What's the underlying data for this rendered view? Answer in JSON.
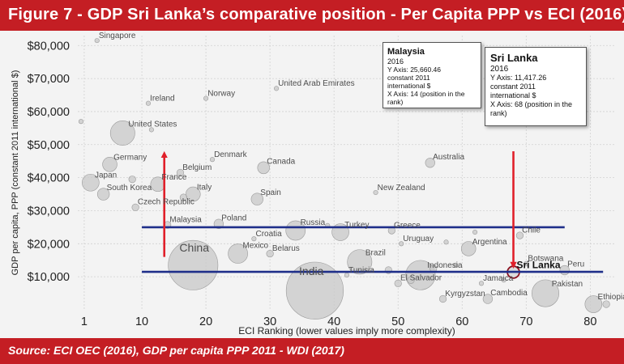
{
  "header": {
    "title": "Figure 7 - GDP Sri Lanka’s comparative position - Per Capita PPP vs ECI (2016)"
  },
  "footer": {
    "source": "Source: ECI OEC (2016), GDP per capita PPP 2011 - WDI (2017)"
  },
  "callouts": {
    "malaysia": {
      "title": "Malaysia",
      "year": "2016",
      "lines": [
        "Y Axis: 25,660.46",
        "constant 2011",
        "international $",
        "X Axis: 14 (position in the",
        "rank)"
      ]
    },
    "sri_lanka": {
      "title": "Sri Lanka",
      "year": "2016",
      "lines": [
        "Y Axis: 11,417.26",
        "constant 2011",
        "international $",
        "X Axis: 68 (position in the",
        "rank)"
      ]
    }
  },
  "colors": {
    "brand_red": "#c41e24",
    "reference_line_blue": "#1f2f8a",
    "arrow_red": "#e0202a",
    "bubble_fill": "#c8c8c8",
    "bubble_stroke": "#9a9a9a",
    "plot_background": "#f3f3f3"
  },
  "chart_data": {
    "type": "scatter",
    "title": "Figure 7 - GDP Sri Lanka’s comparative position - Per Capita PPP vs ECI (2016)",
    "xlabel": "ECI Ranking (lower values imply more complexity)",
    "ylabel": "GDP per capita, PPP (constant 2011 international $)",
    "xlim": [
      0,
      84
    ],
    "ylim": [
      0,
      83000
    ],
    "xticks": [
      1,
      10,
      20,
      30,
      40,
      50,
      60,
      70,
      80
    ],
    "yticks": [
      10000,
      20000,
      30000,
      40000,
      50000,
      60000,
      70000,
      80000
    ],
    "ytick_labels": [
      "$10,000",
      "$20,000",
      "$30,000",
      "$40,000",
      "$50,000",
      "$60,000",
      "$70,000",
      "$80,000"
    ],
    "grid": true,
    "reference_lines": [
      {
        "y": 25000,
        "x_from": 10,
        "x_to": 76
      },
      {
        "y": 11500,
        "x_from": 10,
        "x_to": 82
      }
    ],
    "arrows": [
      {
        "x": 13.5,
        "y_from": 16000,
        "y_to": 47000,
        "direction": "up"
      },
      {
        "x": 68,
        "y_from": 48000,
        "y_to": 13500,
        "direction": "down"
      }
    ],
    "highlight": "Sri Lanka",
    "points": [
      {
        "label": "Singapore",
        "x": 3,
        "y": 81500,
        "size": 1
      },
      {
        "label": "Ireland",
        "x": 11,
        "y": 62500,
        "size": 1
      },
      {
        "label": "Norway",
        "x": 20,
        "y": 64000,
        "size": 1
      },
      {
        "label": "United Arab Emirates",
        "x": 31,
        "y": 67000,
        "size": 1
      },
      {
        "label": "United States",
        "x": 7,
        "y": 53500,
        "size": 9
      },
      {
        "label": "Germany",
        "x": 5,
        "y": 44000,
        "size": 5
      },
      {
        "label": "Japan",
        "x": 2,
        "y": 38500,
        "size": 6
      },
      {
        "label": "South Korea",
        "x": 4,
        "y": 35000,
        "size": 4
      },
      {
        "label": "France",
        "x": 12.5,
        "y": 38000,
        "size": 5
      },
      {
        "label": "Belgium",
        "x": 16,
        "y": 41500,
        "size": 2
      },
      {
        "label": "Denmark",
        "x": 21,
        "y": 45500,
        "size": 1
      },
      {
        "label": "Italy",
        "x": 18,
        "y": 35000,
        "size": 5
      },
      {
        "label": "Czech Republic",
        "x": 9,
        "y": 31000,
        "size": 2
      },
      {
        "label": "Canada",
        "x": 29,
        "y": 43000,
        "size": 4
      },
      {
        "label": "Spain",
        "x": 28,
        "y": 33500,
        "size": 4
      },
      {
        "label": "Australia",
        "x": 55,
        "y": 44500,
        "size": 3
      },
      {
        "label": "New Zealand",
        "x": 46.5,
        "y": 35500,
        "size": 1
      },
      {
        "label": "Malaysia",
        "x": 14,
        "y": 25700,
        "size": 2
      },
      {
        "label": "Poland",
        "x": 22,
        "y": 26000,
        "size": 3
      },
      {
        "label": "Russia",
        "x": 34,
        "y": 24000,
        "size": 7
      },
      {
        "label": "Turkey",
        "x": 41,
        "y": 23500,
        "size": 6
      },
      {
        "label": "Greece",
        "x": 49,
        "y": 24000,
        "size": 2
      },
      {
        "label": "Croatia",
        "x": 27.5,
        "y": 21500,
        "size": 1
      },
      {
        "label": "Mexico",
        "x": 25,
        "y": 17000,
        "size": 7
      },
      {
        "label": "Belarus",
        "x": 30,
        "y": 17000,
        "size": 2
      },
      {
        "label": "China",
        "x": 18,
        "y": 13500,
        "size": 19
      },
      {
        "label": "Uruguay",
        "x": 50.5,
        "y": 20000,
        "size": 1
      },
      {
        "label": "Argentina",
        "x": 61,
        "y": 18500,
        "size": 5
      },
      {
        "label": "Chile",
        "x": 69,
        "y": 22500,
        "size": 2
      },
      {
        "label": "Brazil",
        "x": 44,
        "y": 14500,
        "size": 9
      },
      {
        "label": "Indonesia",
        "x": 53.5,
        "y": 10500,
        "size": 11
      },
      {
        "label": "Tunisia",
        "x": 42,
        "y": 10500,
        "size": 1
      },
      {
        "label": "India",
        "x": 37,
        "y": 5800,
        "size": 22
      },
      {
        "label": "El Salvador",
        "x": 50,
        "y": 8000,
        "size": 2
      },
      {
        "label": "Jamaica",
        "x": 63,
        "y": 8000,
        "size": 1
      },
      {
        "label": "Sri Lanka",
        "x": 68,
        "y": 11400,
        "size": 4
      },
      {
        "label": "Botswana",
        "x": 70,
        "y": 14000,
        "size": 1
      },
      {
        "label": "Peru",
        "x": 76,
        "y": 12000,
        "size": 3
      },
      {
        "label": "Pakistan",
        "x": 73,
        "y": 5000,
        "size": 10
      },
      {
        "label": "Kyrgyzstan",
        "x": 57,
        "y": 3300,
        "size": 2
      },
      {
        "label": "Cambodia",
        "x": 64,
        "y": 3300,
        "size": 3
      },
      {
        "label": "Ethiopia",
        "x": 80.5,
        "y": 1700,
        "size": 6
      },
      {
        "label": "",
        "x": 82.5,
        "y": 1700,
        "size": 2
      },
      {
        "label": "",
        "x": 66.5,
        "y": 9000,
        "size": 1
      },
      {
        "label": "",
        "x": 55.5,
        "y": 12500,
        "size": 2
      },
      {
        "label": "",
        "x": 59,
        "y": 13500,
        "size": 1
      },
      {
        "label": "",
        "x": 48.5,
        "y": 12000,
        "size": 2
      },
      {
        "label": "",
        "x": 52,
        "y": 9000,
        "size": 2
      },
      {
        "label": "",
        "x": 62,
        "y": 23500,
        "size": 1
      },
      {
        "label": "",
        "x": 57.5,
        "y": 20500,
        "size": 1
      },
      {
        "label": "",
        "x": 39,
        "y": 25500,
        "size": 1
      },
      {
        "label": "",
        "x": 8.5,
        "y": 39500,
        "size": 2
      },
      {
        "label": "",
        "x": 0.5,
        "y": 57000,
        "size": 1
      },
      {
        "label": "",
        "x": 11.5,
        "y": 54500,
        "size": 1
      },
      {
        "label": "",
        "x": 16.5,
        "y": 34000,
        "size": 2
      }
    ]
  }
}
